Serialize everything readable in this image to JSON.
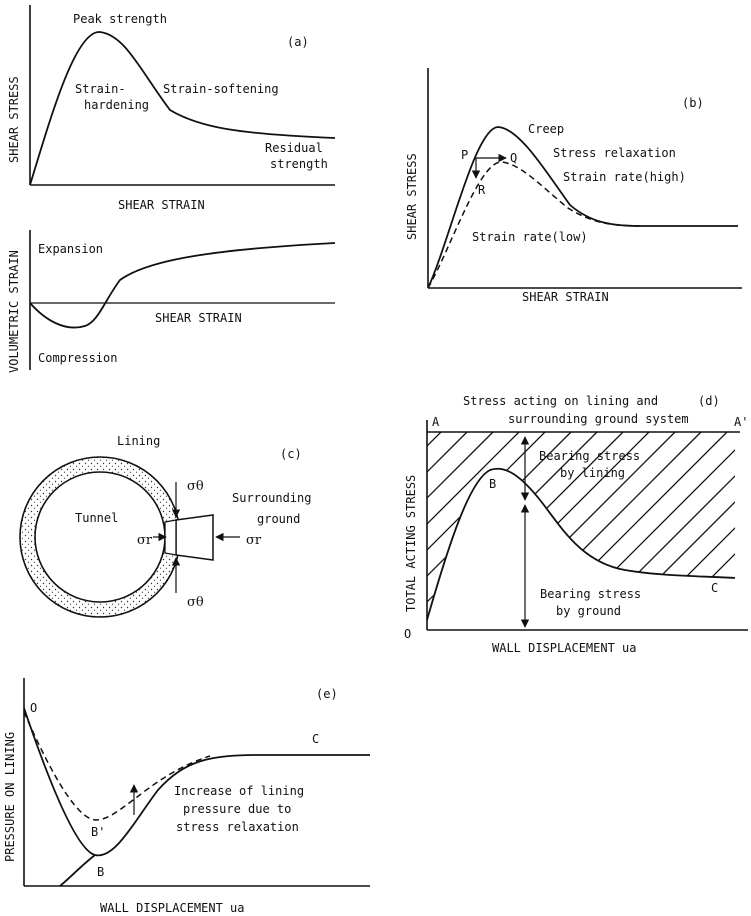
{
  "panel_a": {
    "tag": "(a)",
    "y_label": "SHEAR STRESS",
    "x_label": "SHEAR STRAIN",
    "peak": "Peak strength",
    "hardening_1": "Strain-",
    "hardening_2": "hardening",
    "softening": "Strain-softening",
    "residual_1": "Residual",
    "residual_2": "strength",
    "vol_y_label": "VOLUMETRIC STRAIN",
    "vol_x_label": "SHEAR STRAIN",
    "expansion": "Expansion",
    "compression": "Compression"
  },
  "panel_b": {
    "tag": "(b)",
    "y_label": "SHEAR STRESS",
    "x_label": "SHEAR STRAIN",
    "creep": "Creep",
    "relaxation": "Stress relaxation",
    "rate_high": "Strain rate(high)",
    "rate_low": "Strain rate(low)",
    "p": "P",
    "q": "Q",
    "r": "R"
  },
  "panel_c": {
    "tag": "(c)",
    "lining": "Lining",
    "tunnel": "Tunnel",
    "ground_1": "Surrounding",
    "ground_2": "ground",
    "sigma_theta": "σθ",
    "sigma_r": "σr"
  },
  "panel_d": {
    "tag": "(d)",
    "title_1": "Stress acting on lining and",
    "title_2": "surrounding ground system",
    "y_label": "TOTAL ACTING STRESS",
    "x_label": "WALL DISPLACEMENT  ua",
    "a": "A",
    "a_prime": "A'",
    "b": "B",
    "c": "C",
    "o": "O",
    "lining_1": "Bearing stress",
    "lining_2": "by lining",
    "ground_1": "Bearing stress",
    "ground_2": "by ground"
  },
  "panel_e": {
    "tag": "(e)",
    "y_label": "PRESSURE ON LINING",
    "x_label": "WALL DISPLACEMENT  ua",
    "o": "O",
    "b": "B",
    "b_prime": "B'",
    "c": "C",
    "note_1": "Increase of lining",
    "note_2": "pressure due to",
    "note_3": "stress relaxation"
  }
}
